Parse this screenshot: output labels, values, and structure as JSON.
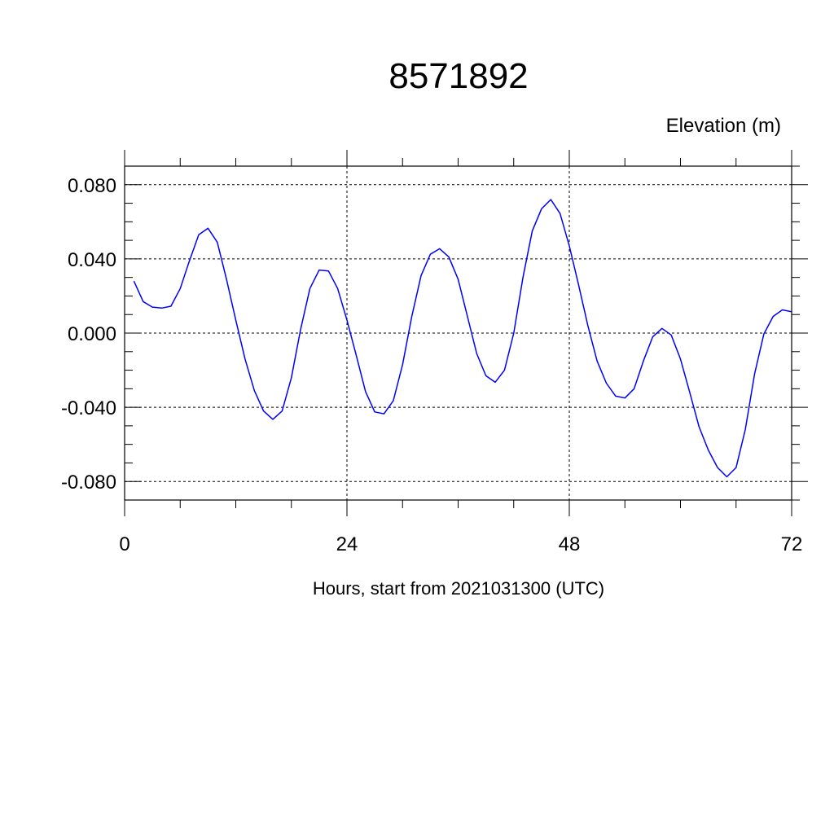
{
  "chart_data": {
    "type": "line",
    "title": "8571892",
    "ylabel": "Elevation (m)",
    "xlabel": "Hours, start from 2021031300 (UTC)",
    "xlim": [
      0,
      72
    ],
    "ylim": [
      -0.09,
      0.09
    ],
    "xticks": [
      0,
      24,
      48,
      72
    ],
    "xtick_labels": [
      "0",
      "24",
      "48",
      "72"
    ],
    "yticks": [
      0.08,
      0.04,
      0.0,
      -0.04,
      -0.08
    ],
    "ytick_labels": [
      "0.080",
      "0.040",
      "0.000",
      "-0.040",
      "-0.080"
    ],
    "grid": true,
    "series": [
      {
        "color": "#0000ff",
        "x": [
          1,
          2,
          3,
          4,
          5,
          6,
          7,
          8,
          9,
          10,
          11,
          12,
          13,
          14,
          15,
          16,
          17,
          18,
          19,
          20,
          21,
          22,
          23,
          24,
          25,
          26,
          27,
          28,
          29,
          30,
          31,
          32,
          33,
          34,
          35,
          36,
          37,
          38,
          39,
          40,
          41,
          42,
          43,
          44,
          45,
          46,
          47,
          48,
          49,
          50,
          51,
          52,
          53,
          54,
          55,
          56,
          57,
          58,
          59,
          60,
          61,
          62,
          63,
          64,
          65,
          66,
          67,
          68,
          69,
          70,
          71,
          72
        ],
        "y": [
          0.028,
          0.017,
          0.014,
          0.0135,
          0.0145,
          0.024,
          0.039,
          0.053,
          0.0565,
          0.049,
          0.029,
          0.007,
          -0.014,
          -0.031,
          -0.042,
          -0.0465,
          -0.042,
          -0.024,
          0.002,
          0.024,
          0.034,
          0.0335,
          0.024,
          0.007,
          -0.012,
          -0.0315,
          -0.0425,
          -0.0435,
          -0.0365,
          -0.017,
          0.009,
          0.031,
          0.0425,
          0.0455,
          0.041,
          0.029,
          0.009,
          -0.011,
          -0.023,
          -0.0265,
          -0.02,
          0.0,
          0.03,
          0.055,
          0.067,
          0.072,
          0.0645,
          0.047,
          0.026,
          0.004,
          -0.015,
          -0.027,
          -0.034,
          -0.035,
          -0.03,
          -0.015,
          -0.002,
          0.0025,
          -0.001,
          -0.014,
          -0.032,
          -0.0505,
          -0.063,
          -0.0725,
          -0.0775,
          -0.0725,
          -0.052,
          -0.022,
          -0.0005,
          0.009,
          0.0125,
          0.0115
        ]
      }
    ]
  }
}
